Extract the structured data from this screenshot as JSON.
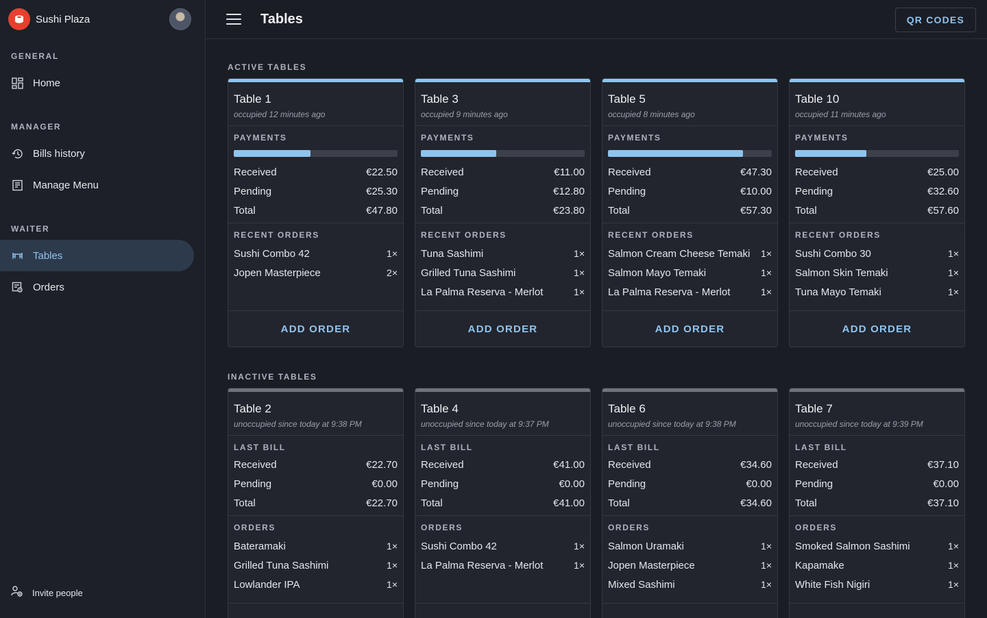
{
  "brand": {
    "name": "Sushi Plaza",
    "logo_icon": "sushi-logo-icon",
    "accent": "#e8402f"
  },
  "sidebar": {
    "sections": [
      {
        "label": "GENERAL",
        "items": [
          {
            "label": "Home",
            "icon": "dashboard-icon"
          }
        ]
      },
      {
        "label": "MANAGER",
        "items": [
          {
            "label": "Bills history",
            "icon": "history-icon"
          },
          {
            "label": "Manage Menu",
            "icon": "menu-book-icon"
          }
        ]
      },
      {
        "label": "WAITER",
        "items": [
          {
            "label": "Tables",
            "icon": "table-icon",
            "active": true
          },
          {
            "label": "Orders",
            "icon": "orders-icon"
          }
        ]
      }
    ],
    "invite_label": "Invite people"
  },
  "header": {
    "title": "Tables",
    "qr_button": "QR CODES"
  },
  "active": {
    "label": "ACTIVE TABLES",
    "payments_label": "PAYMENTS",
    "orders_label": "RECENT ORDERS",
    "action_label": "ADD ORDER",
    "tables": [
      {
        "name": "Table 1",
        "status": "occupied 12 minutes ago",
        "progress": 0.47,
        "received": "€22.50",
        "pending": "€25.30",
        "total": "€47.80",
        "orders": [
          {
            "name": "Sushi Combo 42",
            "qty": "1×"
          },
          {
            "name": "Jopen Masterpiece",
            "qty": "2×"
          }
        ]
      },
      {
        "name": "Table 3",
        "status": "occupied 9 minutes ago",
        "progress": 0.46,
        "received": "€11.00",
        "pending": "€12.80",
        "total": "€23.80",
        "orders": [
          {
            "name": "Tuna Sashimi",
            "qty": "1×"
          },
          {
            "name": "Grilled Tuna Sashimi",
            "qty": "1×"
          },
          {
            "name": "La Palma Reserva - Merlot",
            "qty": "1×"
          }
        ]
      },
      {
        "name": "Table 5",
        "status": "occupied 8 minutes ago",
        "progress": 0.825,
        "received": "€47.30",
        "pending": "€10.00",
        "total": "€57.30",
        "orders": [
          {
            "name": "Salmon Cream Cheese Temaki",
            "qty": "1×"
          },
          {
            "name": "Salmon Mayo Temaki",
            "qty": "1×"
          },
          {
            "name": "La Palma Reserva - Merlot",
            "qty": "1×"
          }
        ]
      },
      {
        "name": "Table 10",
        "status": "occupied 11 minutes ago",
        "progress": 0.434,
        "received": "€25.00",
        "pending": "€32.60",
        "total": "€57.60",
        "orders": [
          {
            "name": "Sushi Combo 30",
            "qty": "1×"
          },
          {
            "name": "Salmon Skin Temaki",
            "qty": "1×"
          },
          {
            "name": "Tuna Mayo Temaki",
            "qty": "1×"
          }
        ]
      }
    ]
  },
  "inactive": {
    "label": "INACTIVE TABLES",
    "bill_label": "LAST BILL",
    "orders_label": "ORDERS",
    "tables": [
      {
        "name": "Table 2",
        "status": "unoccupied since today at 9:38 PM",
        "received": "€22.70",
        "pending": "€0.00",
        "total": "€22.70",
        "orders": [
          {
            "name": "Bateramaki",
            "qty": "1×"
          },
          {
            "name": "Grilled Tuna Sashimi",
            "qty": "1×"
          },
          {
            "name": "Lowlander IPA",
            "qty": "1×"
          }
        ]
      },
      {
        "name": "Table 4",
        "status": "unoccupied since today at 9:37 PM",
        "received": "€41.00",
        "pending": "€0.00",
        "total": "€41.00",
        "orders": [
          {
            "name": "Sushi Combo 42",
            "qty": "1×"
          },
          {
            "name": "La Palma Reserva - Merlot",
            "qty": "1×"
          }
        ]
      },
      {
        "name": "Table 6",
        "status": "unoccupied since today at 9:38 PM",
        "received": "€34.60",
        "pending": "€0.00",
        "total": "€34.60",
        "orders": [
          {
            "name": "Salmon Uramaki",
            "qty": "1×"
          },
          {
            "name": "Jopen Masterpiece",
            "qty": "1×"
          },
          {
            "name": "Mixed Sashimi",
            "qty": "1×"
          }
        ]
      },
      {
        "name": "Table 7",
        "status": "unoccupied since today at 9:39 PM",
        "received": "€37.10",
        "pending": "€0.00",
        "total": "€37.10",
        "orders": [
          {
            "name": "Smoked Salmon Sashimi",
            "qty": "1×"
          },
          {
            "name": "Kapamake",
            "qty": "1×"
          },
          {
            "name": "White Fish Nigiri",
            "qty": "1×"
          }
        ]
      }
    ]
  },
  "row_labels": {
    "received": "Received",
    "pending": "Pending",
    "total": "Total"
  }
}
